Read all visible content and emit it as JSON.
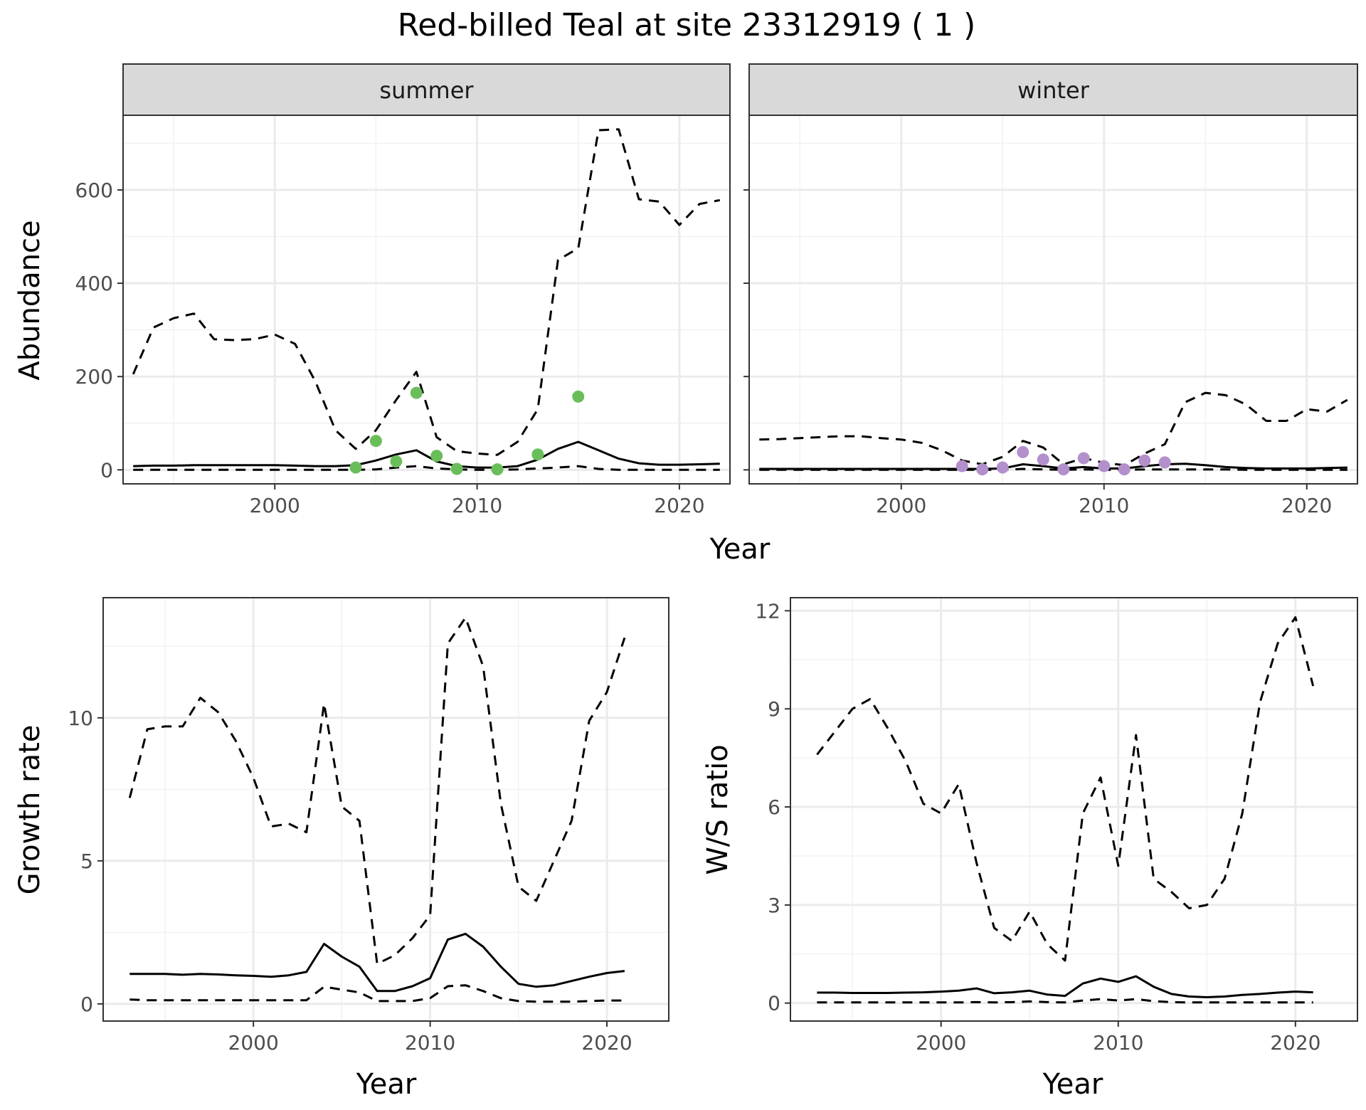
{
  "title": "Red-billed Teal at site 23312919 ( 1 )",
  "colors": {
    "summer_points": "#6abe5a",
    "winter_points": "#b38fcc",
    "lines": "#000000",
    "strip_fill": "#d9d9d9",
    "grid": "#ebebeb"
  },
  "chart_data": [
    {
      "type": "line",
      "panel": "abundance",
      "facet": "summer",
      "ylabel": "Abundance",
      "xlabel": "Year",
      "xlim": [
        1992.5,
        2022.5
      ],
      "ylim": [
        -30,
        760
      ],
      "xticks": [
        2000,
        2010,
        2020
      ],
      "yticks": [
        0,
        200,
        400,
        600
      ],
      "grid": true,
      "series": [
        {
          "role": "estimate",
          "style": "solid",
          "x": [
            1993,
            1994,
            1995,
            1996,
            1997,
            1998,
            1999,
            2000,
            2001,
            2002,
            2003,
            2004,
            2005,
            2006,
            2007,
            2008,
            2009,
            2010,
            2011,
            2012,
            2013,
            2014,
            2015,
            2016,
            2017,
            2018,
            2019,
            2020,
            2021,
            2022
          ],
          "y": [
            8,
            9,
            9,
            10,
            10,
            10,
            10,
            10,
            9,
            8,
            8,
            10,
            20,
            33,
            42,
            18,
            8,
            5,
            5,
            8,
            22,
            45,
            60,
            42,
            24,
            14,
            11,
            11,
            12,
            13
          ]
        },
        {
          "role": "upper",
          "style": "dashed",
          "x": [
            1993,
            1994,
            1995,
            1996,
            1997,
            1998,
            1999,
            2000,
            2001,
            2002,
            2003,
            2004,
            2005,
            2006,
            2007,
            2008,
            2009,
            2010,
            2011,
            2012,
            2013,
            2014,
            2015,
            2016,
            2017,
            2018,
            2019,
            2020,
            2021,
            2022
          ],
          "y": [
            205,
            305,
            325,
            335,
            280,
            278,
            280,
            290,
            270,
            190,
            85,
            45,
            85,
            150,
            210,
            70,
            40,
            35,
            32,
            60,
            130,
            450,
            475,
            728,
            730,
            580,
            575,
            525,
            570,
            578
          ]
        },
        {
          "role": "lower",
          "style": "dashed",
          "x": [
            1993,
            1994,
            1995,
            1996,
            1997,
            1998,
            1999,
            2000,
            2001,
            2002,
            2003,
            2004,
            2005,
            2006,
            2007,
            2008,
            2009,
            2010,
            2011,
            2012,
            2013,
            2014,
            2015,
            2016,
            2017,
            2018,
            2019,
            2020,
            2021,
            2022
          ],
          "y": [
            0,
            0,
            0,
            0,
            0,
            0,
            0,
            0,
            0,
            0,
            0,
            0,
            1,
            5,
            8,
            3,
            1,
            0,
            0,
            1,
            3,
            5,
            8,
            2,
            0,
            0,
            0,
            0,
            0,
            0
          ]
        }
      ],
      "points": {
        "x": [
          2004,
          2005,
          2006,
          2007,
          2008,
          2009,
          2011,
          2013,
          2015
        ],
        "y": [
          5,
          62,
          18,
          165,
          30,
          2,
          1,
          33,
          157
        ]
      }
    },
    {
      "type": "line",
      "panel": "abundance",
      "facet": "winter",
      "xlabel": "Year",
      "xlim": [
        1992.5,
        2022.5
      ],
      "ylim": [
        -30,
        760
      ],
      "xticks": [
        2000,
        2010,
        2020
      ],
      "yticks": [
        0,
        200,
        400,
        600
      ],
      "grid": true,
      "series": [
        {
          "role": "estimate",
          "style": "solid",
          "x": [
            1993,
            1994,
            1995,
            1996,
            1997,
            1998,
            1999,
            2000,
            2001,
            2002,
            2003,
            2004,
            2005,
            2006,
            2007,
            2008,
            2009,
            2010,
            2011,
            2012,
            2013,
            2014,
            2015,
            2016,
            2017,
            2018,
            2019,
            2020,
            2021,
            2022
          ],
          "y": [
            2,
            2,
            2,
            2,
            2,
            2,
            2,
            2,
            2,
            2,
            2,
            2,
            3,
            12,
            8,
            3,
            6,
            3,
            3,
            8,
            12,
            13,
            10,
            6,
            4,
            3,
            3,
            3,
            4,
            5
          ]
        },
        {
          "role": "upper",
          "style": "dashed",
          "x": [
            1993,
            1994,
            1995,
            1996,
            1997,
            1998,
            1999,
            2000,
            2001,
            2002,
            2003,
            2004,
            2005,
            2006,
            2007,
            2008,
            2009,
            2010,
            2011,
            2012,
            2013,
            2014,
            2015,
            2016,
            2017,
            2018,
            2019,
            2020,
            2021,
            2022
          ],
          "y": [
            65,
            66,
            68,
            70,
            72,
            72,
            68,
            65,
            58,
            42,
            20,
            12,
            28,
            62,
            48,
            12,
            25,
            15,
            10,
            35,
            55,
            145,
            165,
            160,
            140,
            105,
            105,
            130,
            125,
            150
          ]
        },
        {
          "role": "lower",
          "style": "dashed",
          "x": [
            1993,
            1994,
            1995,
            1996,
            1997,
            1998,
            1999,
            2000,
            2001,
            2002,
            2003,
            2004,
            2005,
            2006,
            2007,
            2008,
            2009,
            2010,
            2011,
            2012,
            2013,
            2014,
            2015,
            2016,
            2017,
            2018,
            2019,
            2020,
            2021,
            2022
          ],
          "y": [
            0,
            0,
            0,
            0,
            0,
            0,
            0,
            0,
            0,
            0,
            0,
            0,
            0,
            2,
            1,
            0,
            1,
            0,
            0,
            1,
            1,
            1,
            1,
            1,
            0,
            0,
            0,
            0,
            0,
            0
          ]
        }
      ],
      "points": {
        "x": [
          2003,
          2004,
          2005,
          2006,
          2007,
          2008,
          2009,
          2010,
          2011,
          2012,
          2013
        ],
        "y": [
          8,
          1,
          5,
          38,
          22,
          1,
          25,
          8,
          1,
          20,
          16
        ]
      }
    },
    {
      "type": "line",
      "panel": "growth",
      "ylabel": "Growth rate",
      "xlabel": "Year",
      "xlim": [
        1991.5,
        2023.5
      ],
      "ylim": [
        -0.6,
        14.2
      ],
      "xticks": [
        2000,
        2010,
        2020
      ],
      "yticks": [
        0,
        5,
        10
      ],
      "grid": true,
      "series": [
        {
          "role": "estimate",
          "style": "solid",
          "x": [
            1993,
            1994,
            1995,
            1996,
            1997,
            1998,
            1999,
            2000,
            2001,
            2002,
            2003,
            2004,
            2005,
            2006,
            2007,
            2008,
            2009,
            2010,
            2011,
            2012,
            2013,
            2014,
            2015,
            2016,
            2017,
            2018,
            2019,
            2020,
            2021
          ],
          "y": [
            1.05,
            1.05,
            1.05,
            1.02,
            1.05,
            1.03,
            1.0,
            0.98,
            0.95,
            1.0,
            1.12,
            2.1,
            1.65,
            1.3,
            0.45,
            0.45,
            0.62,
            0.9,
            2.25,
            2.45,
            2.0,
            1.3,
            0.7,
            0.6,
            0.65,
            0.8,
            0.95,
            1.08,
            1.15
          ]
        },
        {
          "role": "upper",
          "style": "dashed",
          "x": [
            1993,
            1994,
            1995,
            1996,
            1997,
            1998,
            1999,
            2000,
            2001,
            2002,
            2003,
            2004,
            2005,
            2006,
            2007,
            2008,
            2009,
            2010,
            2011,
            2012,
            2013,
            2014,
            2015,
            2016,
            2017,
            2018,
            2019,
            2020,
            2021
          ],
          "y": [
            7.2,
            9.6,
            9.7,
            9.7,
            10.7,
            10.2,
            9.2,
            7.9,
            6.2,
            6.3,
            6.0,
            10.5,
            6.9,
            6.4,
            1.4,
            1.7,
            2.3,
            3.1,
            12.6,
            13.5,
            11.8,
            7.0,
            4.1,
            3.6,
            5.0,
            6.4,
            9.9,
            10.9,
            12.8
          ]
        },
        {
          "role": "lower",
          "style": "dashed",
          "x": [
            1993,
            1994,
            1995,
            1996,
            1997,
            1998,
            1999,
            2000,
            2001,
            2002,
            2003,
            2004,
            2005,
            2006,
            2007,
            2008,
            2009,
            2010,
            2011,
            2012,
            2013,
            2014,
            2015,
            2016,
            2017,
            2018,
            2019,
            2020,
            2021
          ],
          "y": [
            0.15,
            0.13,
            0.13,
            0.13,
            0.13,
            0.13,
            0.13,
            0.13,
            0.13,
            0.13,
            0.13,
            0.6,
            0.5,
            0.4,
            0.1,
            0.1,
            0.1,
            0.2,
            0.62,
            0.65,
            0.45,
            0.2,
            0.1,
            0.08,
            0.08,
            0.08,
            0.1,
            0.12,
            0.12
          ]
        }
      ]
    },
    {
      "type": "line",
      "panel": "ratio",
      "ylabel": "W/S ratio",
      "xlabel": "Year",
      "xlim": [
        1991.5,
        2023.5
      ],
      "ylim": [
        -0.55,
        12.4
      ],
      "xticks": [
        2000,
        2010,
        2020
      ],
      "yticks": [
        0,
        3,
        6,
        9,
        12
      ],
      "grid": true,
      "series": [
        {
          "role": "estimate",
          "style": "solid",
          "x": [
            1993,
            1994,
            1995,
            1996,
            1997,
            1998,
            1999,
            2000,
            2001,
            2002,
            2003,
            2004,
            2005,
            2006,
            2007,
            2008,
            2009,
            2010,
            2011,
            2012,
            2013,
            2014,
            2015,
            2016,
            2017,
            2018,
            2019,
            2020,
            2021
          ],
          "y": [
            0.32,
            0.32,
            0.31,
            0.31,
            0.31,
            0.32,
            0.33,
            0.35,
            0.38,
            0.45,
            0.3,
            0.33,
            0.38,
            0.26,
            0.22,
            0.6,
            0.75,
            0.65,
            0.82,
            0.5,
            0.28,
            0.2,
            0.18,
            0.2,
            0.25,
            0.28,
            0.32,
            0.35,
            0.33
          ]
        },
        {
          "role": "upper",
          "style": "dashed",
          "x": [
            1993,
            1994,
            1995,
            1996,
            1997,
            1998,
            1999,
            2000,
            2001,
            2002,
            2003,
            2004,
            2005,
            2006,
            2007,
            2008,
            2009,
            2010,
            2011,
            2012,
            2013,
            2014,
            2015,
            2016,
            2017,
            2018,
            2019,
            2020,
            2021
          ],
          "y": [
            7.6,
            8.3,
            9.0,
            9.3,
            8.4,
            7.4,
            6.1,
            5.8,
            6.7,
            4.3,
            2.3,
            1.9,
            2.8,
            1.8,
            1.3,
            5.8,
            6.9,
            4.2,
            8.2,
            3.8,
            3.4,
            2.9,
            3.0,
            3.8,
            5.8,
            9.2,
            11.0,
            11.8,
            9.7
          ]
        },
        {
          "role": "lower",
          "style": "dashed",
          "x": [
            1993,
            1994,
            1995,
            1996,
            1997,
            1998,
            1999,
            2000,
            2001,
            2002,
            2003,
            2004,
            2005,
            2006,
            2007,
            2008,
            2009,
            2010,
            2011,
            2012,
            2013,
            2014,
            2015,
            2016,
            2017,
            2018,
            2019,
            2020,
            2021
          ],
          "y": [
            0.02,
            0.02,
            0.02,
            0.02,
            0.02,
            0.02,
            0.02,
            0.02,
            0.02,
            0.03,
            0.02,
            0.03,
            0.05,
            0.03,
            0.02,
            0.08,
            0.12,
            0.08,
            0.12,
            0.06,
            0.03,
            0.02,
            0.02,
            0.02,
            0.02,
            0.02,
            0.02,
            0.02,
            0.02
          ]
        }
      ]
    }
  ]
}
